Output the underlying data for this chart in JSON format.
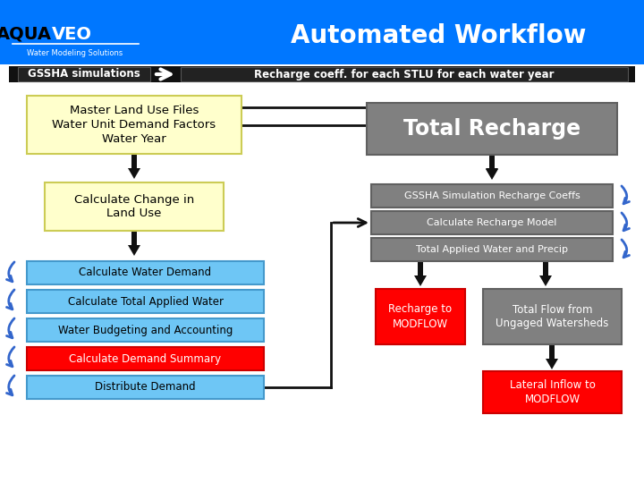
{
  "title": "Automated Workflow",
  "header_bg": "#0077FF",
  "header_text_color": "#FFFFFF",
  "body_bg": "#FFFFFF",
  "logo_sub": "Water Modeling Solutions",
  "top_bar_left": "GSSHA simulations",
  "top_bar_right": "Recharge coeff. for each STLU for each water year",
  "top_bar_bg": "#111111",
  "top_bar_text_color": "#FFFFFF",
  "box_master": {
    "text": "Master Land Use Files\nWater Unit Demand Factors\nWater Year",
    "bg": "#FFFFCC",
    "border": "#CCCC55",
    "text_color": "#000000"
  },
  "box_change": {
    "text": "Calculate Change in\nLand Use",
    "bg": "#FFFFCC",
    "border": "#CCCC55",
    "text_color": "#000000"
  },
  "box_water_demand": {
    "text": "Calculate Water Demand",
    "bg": "#6EC6F5",
    "border": "#4499CC",
    "text_color": "#000000"
  },
  "box_total_applied": {
    "text": "Calculate Total Applied Water",
    "bg": "#6EC6F5",
    "border": "#4499CC",
    "text_color": "#000000"
  },
  "box_budgeting": {
    "text": "Water Budgeting and Accounting",
    "bg": "#6EC6F5",
    "border": "#4499CC",
    "text_color": "#000000"
  },
  "box_demand_summary": {
    "text": "Calculate Demand Summary",
    "bg": "#FF0000",
    "border": "#CC0000",
    "text_color": "#FF0000"
  },
  "box_distribute": {
    "text": "Distribute Demand",
    "bg": "#6EC6F5",
    "border": "#4499CC",
    "text_color": "#000000"
  },
  "box_total_recharge": {
    "text": "Total Recharge",
    "bg": "#808080",
    "border": "#606060",
    "text_color": "#FFFFFF"
  },
  "box_gssha_sim": {
    "text": "GSSHA Simulation Recharge Coeffs",
    "bg": "#808080",
    "border": "#606060",
    "text_color": "#FFFFFF"
  },
  "box_recharge_model": {
    "text": "Calculate Recharge Model",
    "bg": "#808080",
    "border": "#606060",
    "text_color": "#FFFFFF"
  },
  "box_total_water_precip": {
    "text": "Total Applied Water and Precip",
    "bg": "#808080",
    "border": "#606060",
    "text_color": "#FFFFFF"
  },
  "box_recharge_modflow": {
    "text": "Recharge to\nMODFLOW",
    "bg": "#FF0000",
    "border": "#CC0000",
    "text_color": "#FFFFFF"
  },
  "box_total_flow": {
    "text": "Total Flow from\nUngaged Watersheds",
    "bg": "#808080",
    "border": "#606060",
    "text_color": "#FFFFFF"
  },
  "box_lateral": {
    "text": "Lateral Inflow to\nMODFLOW",
    "bg": "#FF0000",
    "border": "#CC0000",
    "text_color": "#FFFFFF"
  },
  "arrow_color": "#111111",
  "curve_arrow_color": "#3366CC"
}
